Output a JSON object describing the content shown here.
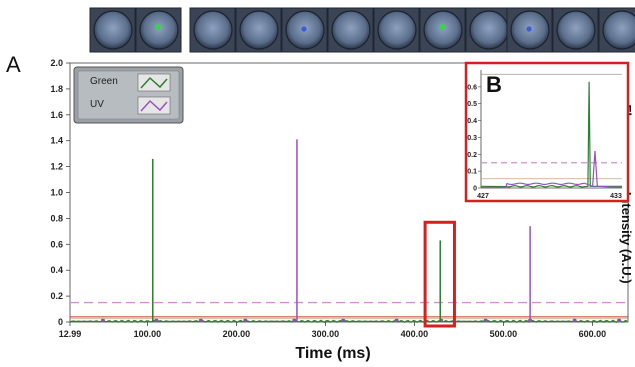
{
  "figure": {
    "panel_a_label": "A",
    "panel_b_label": "B",
    "droplet_image_groups": [
      {
        "group": 1,
        "droplets": [
          "empty",
          "green"
        ]
      },
      {
        "group": 2,
        "droplets": [
          "empty",
          "empty",
          "uv",
          "empty",
          "empty",
          "green",
          "empty"
        ]
      },
      {
        "group": 3,
        "droplets": [
          "uv",
          "empty",
          "empty"
        ]
      }
    ],
    "colors": {
      "green": "#2e7d32",
      "uv": "#9c4fc0",
      "threshold_pink": "#d18fd6",
      "threshold_red": "#c0392b",
      "threshold_tan": "#c8a27a",
      "highlight_box": "#d62020",
      "legend_bg": "#9aa0a6",
      "droplet_bg": "#5b6f8c"
    }
  },
  "chart_data": [
    {
      "id": "A",
      "type": "line",
      "title": "",
      "xlabel": "Time (ms)",
      "ylabel": "Fluorescence Intensity (A.U.)",
      "xlim": [
        12.99,
        640
      ],
      "ylim": [
        0,
        2.0
      ],
      "x_ticks": [
        "12.99",
        "100.00",
        "200.00",
        "300.00",
        "400.00",
        "500.00",
        "600.00"
      ],
      "x_tick_values": [
        12.99,
        100,
        200,
        300,
        400,
        500,
        600
      ],
      "y_ticks": [
        "0",
        "0.2",
        "0.4",
        "0.6",
        "0.8",
        "1.0",
        "1.2",
        "1.4",
        "1.6",
        "1.8",
        "2.0"
      ],
      "y_tick_values": [
        0,
        0.2,
        0.4,
        0.6,
        0.8,
        1.0,
        1.2,
        1.4,
        1.6,
        1.8,
        2.0
      ],
      "legend": {
        "position": "top-left",
        "entries": [
          "Green",
          "UV"
        ]
      },
      "grid": false,
      "series": [
        {
          "name": "Green",
          "peaks": [
            {
              "x": 106,
              "y": 1.26
            },
            {
              "x": 429,
              "y": 0.63
            }
          ]
        },
        {
          "name": "UV",
          "peaks": [
            {
              "x": 268,
              "y": 1.41
            },
            {
              "x": 530,
              "y": 0.74
            }
          ]
        }
      ],
      "thresholds": [
        {
          "series": "UV",
          "y": 0.15,
          "style": "dashed"
        },
        {
          "series": "Green",
          "y": 0.04,
          "style": "solid"
        }
      ],
      "baseline_markers_x": [
        50,
        110,
        160,
        210,
        265,
        320,
        380,
        430,
        480,
        530,
        580,
        630
      ],
      "highlight_region": {
        "x": [
          412,
          445
        ],
        "y": [
          0,
          0.77
        ]
      }
    },
    {
      "id": "B",
      "type": "line",
      "title": "",
      "xlim": [
        427,
        433
      ],
      "ylim": [
        0,
        0.7
      ],
      "x_ticks": [
        "427",
        "433"
      ],
      "x_tick_values": [
        427,
        433
      ],
      "y_ticks": [
        "0",
        "0.1",
        "0.2",
        "0.3",
        "0.4",
        "0.5",
        "0.6"
      ],
      "y_tick_values": [
        0,
        0.1,
        0.2,
        0.3,
        0.4,
        0.5,
        0.6
      ],
      "grid": false,
      "series": [
        {
          "name": "Green",
          "peaks": [
            {
              "x": 431.6,
              "y": 0.63
            }
          ]
        },
        {
          "name": "UV",
          "peaks": [
            {
              "x": 431.85,
              "y": 0.22
            }
          ]
        }
      ],
      "thresholds": [
        {
          "series": "UV",
          "y": 0.15,
          "style": "dashed"
        },
        {
          "series": "Green",
          "y": 0.055,
          "style": "solid"
        },
        {
          "series": "top",
          "y": 0.675,
          "style": "solid"
        }
      ],
      "uv_plateau": {
        "x": [
          428.1,
          431.5
        ],
        "y": 0.025
      }
    }
  ]
}
